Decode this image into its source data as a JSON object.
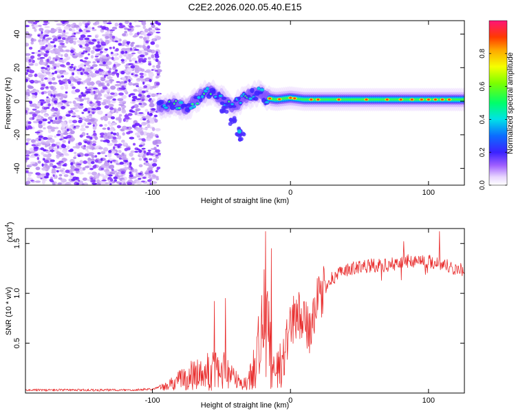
{
  "title": "C2E2.2026.020.05.40.E15",
  "chart_data": [
    {
      "type": "heatmap",
      "title": "C2E2.2026.020.05.40.E15",
      "xlabel": "Height of straight line (km)",
      "ylabel": "Frequency (Hz)",
      "xlim": [
        -192,
        126
      ],
      "ylim": [
        -50,
        48
      ],
      "xticks": [
        -100,
        0,
        100
      ],
      "xtick_labels": [
        "-100",
        "0",
        "100"
      ],
      "yticks": [
        -40,
        -20,
        0,
        20,
        40
      ],
      "ytick_labels": [
        "-40",
        "-20",
        "0",
        "20",
        "40"
      ],
      "noise_region_x": [
        -192,
        -95
      ],
      "ridge": [
        {
          "x": -95,
          "y": -3
        },
        {
          "x": -85,
          "y": -2
        },
        {
          "x": -75,
          "y": -4
        },
        {
          "x": -65,
          "y": 3
        },
        {
          "x": -58,
          "y": 6
        },
        {
          "x": -50,
          "y": 2
        },
        {
          "x": -42,
          "y": -4
        },
        {
          "x": -35,
          "y": 1
        },
        {
          "x": -28,
          "y": 4
        },
        {
          "x": -22,
          "y": 5
        },
        {
          "x": -18,
          "y": 2
        },
        {
          "x": -10,
          "y": 1
        },
        {
          "x": 0,
          "y": 2
        },
        {
          "x": 10,
          "y": 1
        },
        {
          "x": 40,
          "y": 1
        },
        {
          "x": 80,
          "y": 1
        },
        {
          "x": 126,
          "y": 1
        }
      ],
      "branch": [
        {
          "x": -48,
          "y": -5
        },
        {
          "x": -42,
          "y": -12
        },
        {
          "x": -38,
          "y": -18
        },
        {
          "x": -35,
          "y": -21
        }
      ],
      "colorbar": {
        "label": "Normalized spectral amplitude",
        "range": [
          0,
          1
        ],
        "ticks": [
          0,
          0.2,
          0.4,
          0.6,
          0.8
        ],
        "tick_labels": [
          "0.0",
          "0.2",
          "0.4",
          "0.6",
          "0.8"
        ]
      }
    },
    {
      "type": "line",
      "xlabel": "Height of straight line (km)",
      "ylabel": "SNR (10 * v/v)",
      "y_scale_label": "(x10",
      "y_scale_exp": "4",
      "xlim": [
        -192,
        126
      ],
      "ylim": [
        0,
        1.65
      ],
      "xticks": [
        -100,
        0,
        100
      ],
      "xtick_labels": [
        "-100",
        "0",
        "100"
      ],
      "yticks": [
        0.5,
        1.0,
        1.5
      ],
      "ytick_labels": [
        "0.5",
        "1.0",
        "1.5"
      ],
      "series": [
        {
          "name": "SNR",
          "color": "#e82a2a",
          "envelope": [
            {
              "x": -192,
              "y": 0.03
            },
            {
              "x": -120,
              "y": 0.03
            },
            {
              "x": -100,
              "y": 0.04
            },
            {
              "x": -90,
              "y": 0.08
            },
            {
              "x": -80,
              "y": 0.2
            },
            {
              "x": -70,
              "y": 0.3
            },
            {
              "x": -60,
              "y": 0.35
            },
            {
              "x": -50,
              "y": 0.42
            },
            {
              "x": -45,
              "y": 0.38
            },
            {
              "x": -40,
              "y": 0.2
            },
            {
              "x": -35,
              "y": 0.1
            },
            {
              "x": -30,
              "y": 0.2
            },
            {
              "x": -25,
              "y": 0.55
            },
            {
              "x": -22,
              "y": 0.9
            },
            {
              "x": -18,
              "y": 1.2
            },
            {
              "x": -15,
              "y": 0.9
            },
            {
              "x": -12,
              "y": 0.35
            },
            {
              "x": -10,
              "y": 0.2
            },
            {
              "x": -5,
              "y": 0.35
            },
            {
              "x": 0,
              "y": 0.7
            },
            {
              "x": 5,
              "y": 0.8
            },
            {
              "x": 10,
              "y": 0.72
            },
            {
              "x": 15,
              "y": 0.6
            },
            {
              "x": 20,
              "y": 0.95
            },
            {
              "x": 25,
              "y": 1.05
            },
            {
              "x": 30,
              "y": 1.15
            },
            {
              "x": 40,
              "y": 1.23
            },
            {
              "x": 50,
              "y": 1.27
            },
            {
              "x": 60,
              "y": 1.28
            },
            {
              "x": 70,
              "y": 1.28
            },
            {
              "x": 80,
              "y": 1.31
            },
            {
              "x": 90,
              "y": 1.33
            },
            {
              "x": 100,
              "y": 1.32
            },
            {
              "x": 110,
              "y": 1.3
            },
            {
              "x": 118,
              "y": 1.25
            },
            {
              "x": 126,
              "y": 1.24
            }
          ],
          "peaks": [
            {
              "x": -18,
              "y": 1.62
            },
            {
              "x": -14,
              "y": 1.45
            },
            {
              "x": 108,
              "y": 1.62
            },
            {
              "x": 82,
              "y": 1.52
            },
            {
              "x": -55,
              "y": 0.92
            },
            {
              "x": -47,
              "y": 0.95
            }
          ]
        }
      ]
    }
  ]
}
